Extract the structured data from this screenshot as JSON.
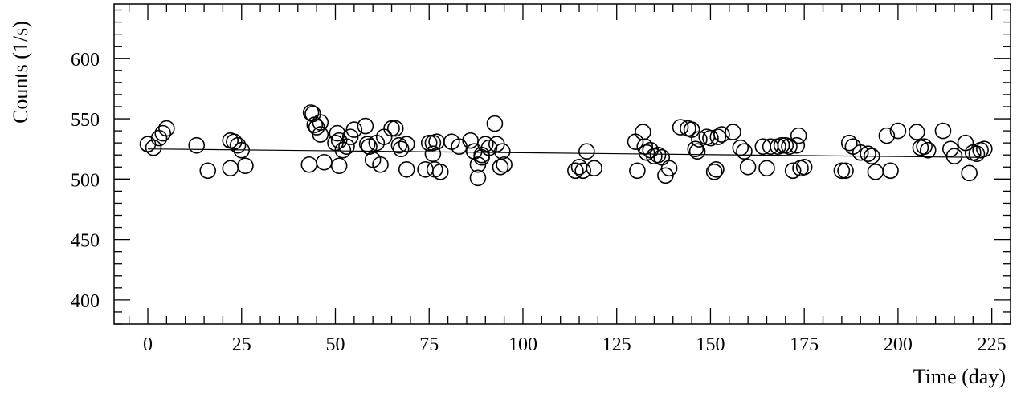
{
  "chart_data": {
    "type": "scatter",
    "xlabel": "Time (day)",
    "ylabel": "Counts (1/s)",
    "xlim": [
      -9,
      230
    ],
    "ylim": [
      380,
      645
    ],
    "x_ticks": [
      0,
      25,
      50,
      75,
      100,
      125,
      150,
      175,
      200,
      225
    ],
    "y_ticks": [
      400,
      450,
      500,
      550,
      600
    ],
    "x_minor_step": 5,
    "y_minor_step": 10,
    "grid": false,
    "marker": "open-circle",
    "fit_line": {
      "x": [
        0,
        222
      ],
      "y": [
        525,
        518
      ]
    },
    "points": [
      [
        0,
        529
      ],
      [
        1.5,
        526
      ],
      [
        3,
        534
      ],
      [
        4,
        538
      ],
      [
        5,
        542
      ],
      [
        13,
        528
      ],
      [
        16,
        507
      ],
      [
        22,
        532
      ],
      [
        22,
        509
      ],
      [
        23,
        531
      ],
      [
        24,
        528
      ],
      [
        25,
        524
      ],
      [
        26,
        511
      ],
      [
        43,
        512
      ],
      [
        43.5,
        555
      ],
      [
        44,
        554
      ],
      [
        44.5,
        545
      ],
      [
        45,
        543
      ],
      [
        46,
        547
      ],
      [
        46,
        537
      ],
      [
        47,
        514
      ],
      [
        50,
        530
      ],
      [
        50.5,
        538
      ],
      [
        51,
        511
      ],
      [
        51,
        532
      ],
      [
        52,
        524
      ],
      [
        53,
        527
      ],
      [
        54,
        535
      ],
      [
        55,
        541
      ],
      [
        58,
        544
      ],
      [
        58.5,
        529
      ],
      [
        59,
        527
      ],
      [
        60,
        516
      ],
      [
        61,
        530
      ],
      [
        62,
        512
      ],
      [
        63,
        535
      ],
      [
        65,
        542
      ],
      [
        66,
        542
      ],
      [
        67,
        528
      ],
      [
        67.5,
        525
      ],
      [
        69,
        529
      ],
      [
        69,
        508
      ],
      [
        74,
        508
      ],
      [
        75,
        530
      ],
      [
        76,
        530
      ],
      [
        76,
        521
      ],
      [
        76.5,
        508
      ],
      [
        77,
        531
      ],
      [
        78,
        506
      ],
      [
        81,
        531
      ],
      [
        83,
        527
      ],
      [
        86,
        532
      ],
      [
        87,
        523
      ],
      [
        88,
        512
      ],
      [
        88,
        501
      ],
      [
        89,
        518
      ],
      [
        89,
        520
      ],
      [
        90,
        529
      ],
      [
        91,
        526
      ],
      [
        92.5,
        546
      ],
      [
        93,
        529
      ],
      [
        94,
        510
      ],
      [
        94.5,
        523
      ],
      [
        95,
        512
      ],
      [
        114,
        507
      ],
      [
        115,
        510
      ],
      [
        116,
        507
      ],
      [
        117,
        523
      ],
      [
        119,
        509
      ],
      [
        130,
        531
      ],
      [
        130.5,
        507
      ],
      [
        132,
        539
      ],
      [
        132.5,
        527
      ],
      [
        133,
        522
      ],
      [
        134,
        524
      ],
      [
        135,
        519
      ],
      [
        136,
        520
      ],
      [
        137,
        518
      ],
      [
        138,
        503
      ],
      [
        139,
        509
      ],
      [
        142,
        543
      ],
      [
        144,
        542
      ],
      [
        145,
        541
      ],
      [
        146,
        525
      ],
      [
        146.5,
        523
      ],
      [
        147,
        533
      ],
      [
        149,
        535
      ],
      [
        150,
        534
      ],
      [
        151,
        506
      ],
      [
        151.5,
        508
      ],
      [
        152,
        535
      ],
      [
        153,
        537
      ],
      [
        156,
        539
      ],
      [
        158,
        526
      ],
      [
        159,
        523
      ],
      [
        160,
        510
      ],
      [
        164,
        527
      ],
      [
        165,
        509
      ],
      [
        166,
        527
      ],
      [
        168,
        527
      ],
      [
        169,
        528
      ],
      [
        170,
        528
      ],
      [
        171,
        527
      ],
      [
        172,
        507
      ],
      [
        173,
        528
      ],
      [
        173.5,
        536
      ],
      [
        174,
        509
      ],
      [
        175,
        510
      ],
      [
        185,
        507
      ],
      [
        186,
        507
      ],
      [
        187,
        530
      ],
      [
        188,
        527
      ],
      [
        190,
        522
      ],
      [
        192,
        521
      ],
      [
        193,
        519
      ],
      [
        194,
        506
      ],
      [
        197,
        536
      ],
      [
        198,
        507
      ],
      [
        200,
        540
      ],
      [
        205,
        539
      ],
      [
        206,
        526
      ],
      [
        207,
        527
      ],
      [
        208,
        524
      ],
      [
        212,
        540
      ],
      [
        214,
        525
      ],
      [
        215,
        519
      ],
      [
        218,
        530
      ],
      [
        219,
        505
      ],
      [
        220,
        522
      ],
      [
        221,
        521
      ],
      [
        222,
        524
      ],
      [
        223,
        525
      ]
    ]
  }
}
